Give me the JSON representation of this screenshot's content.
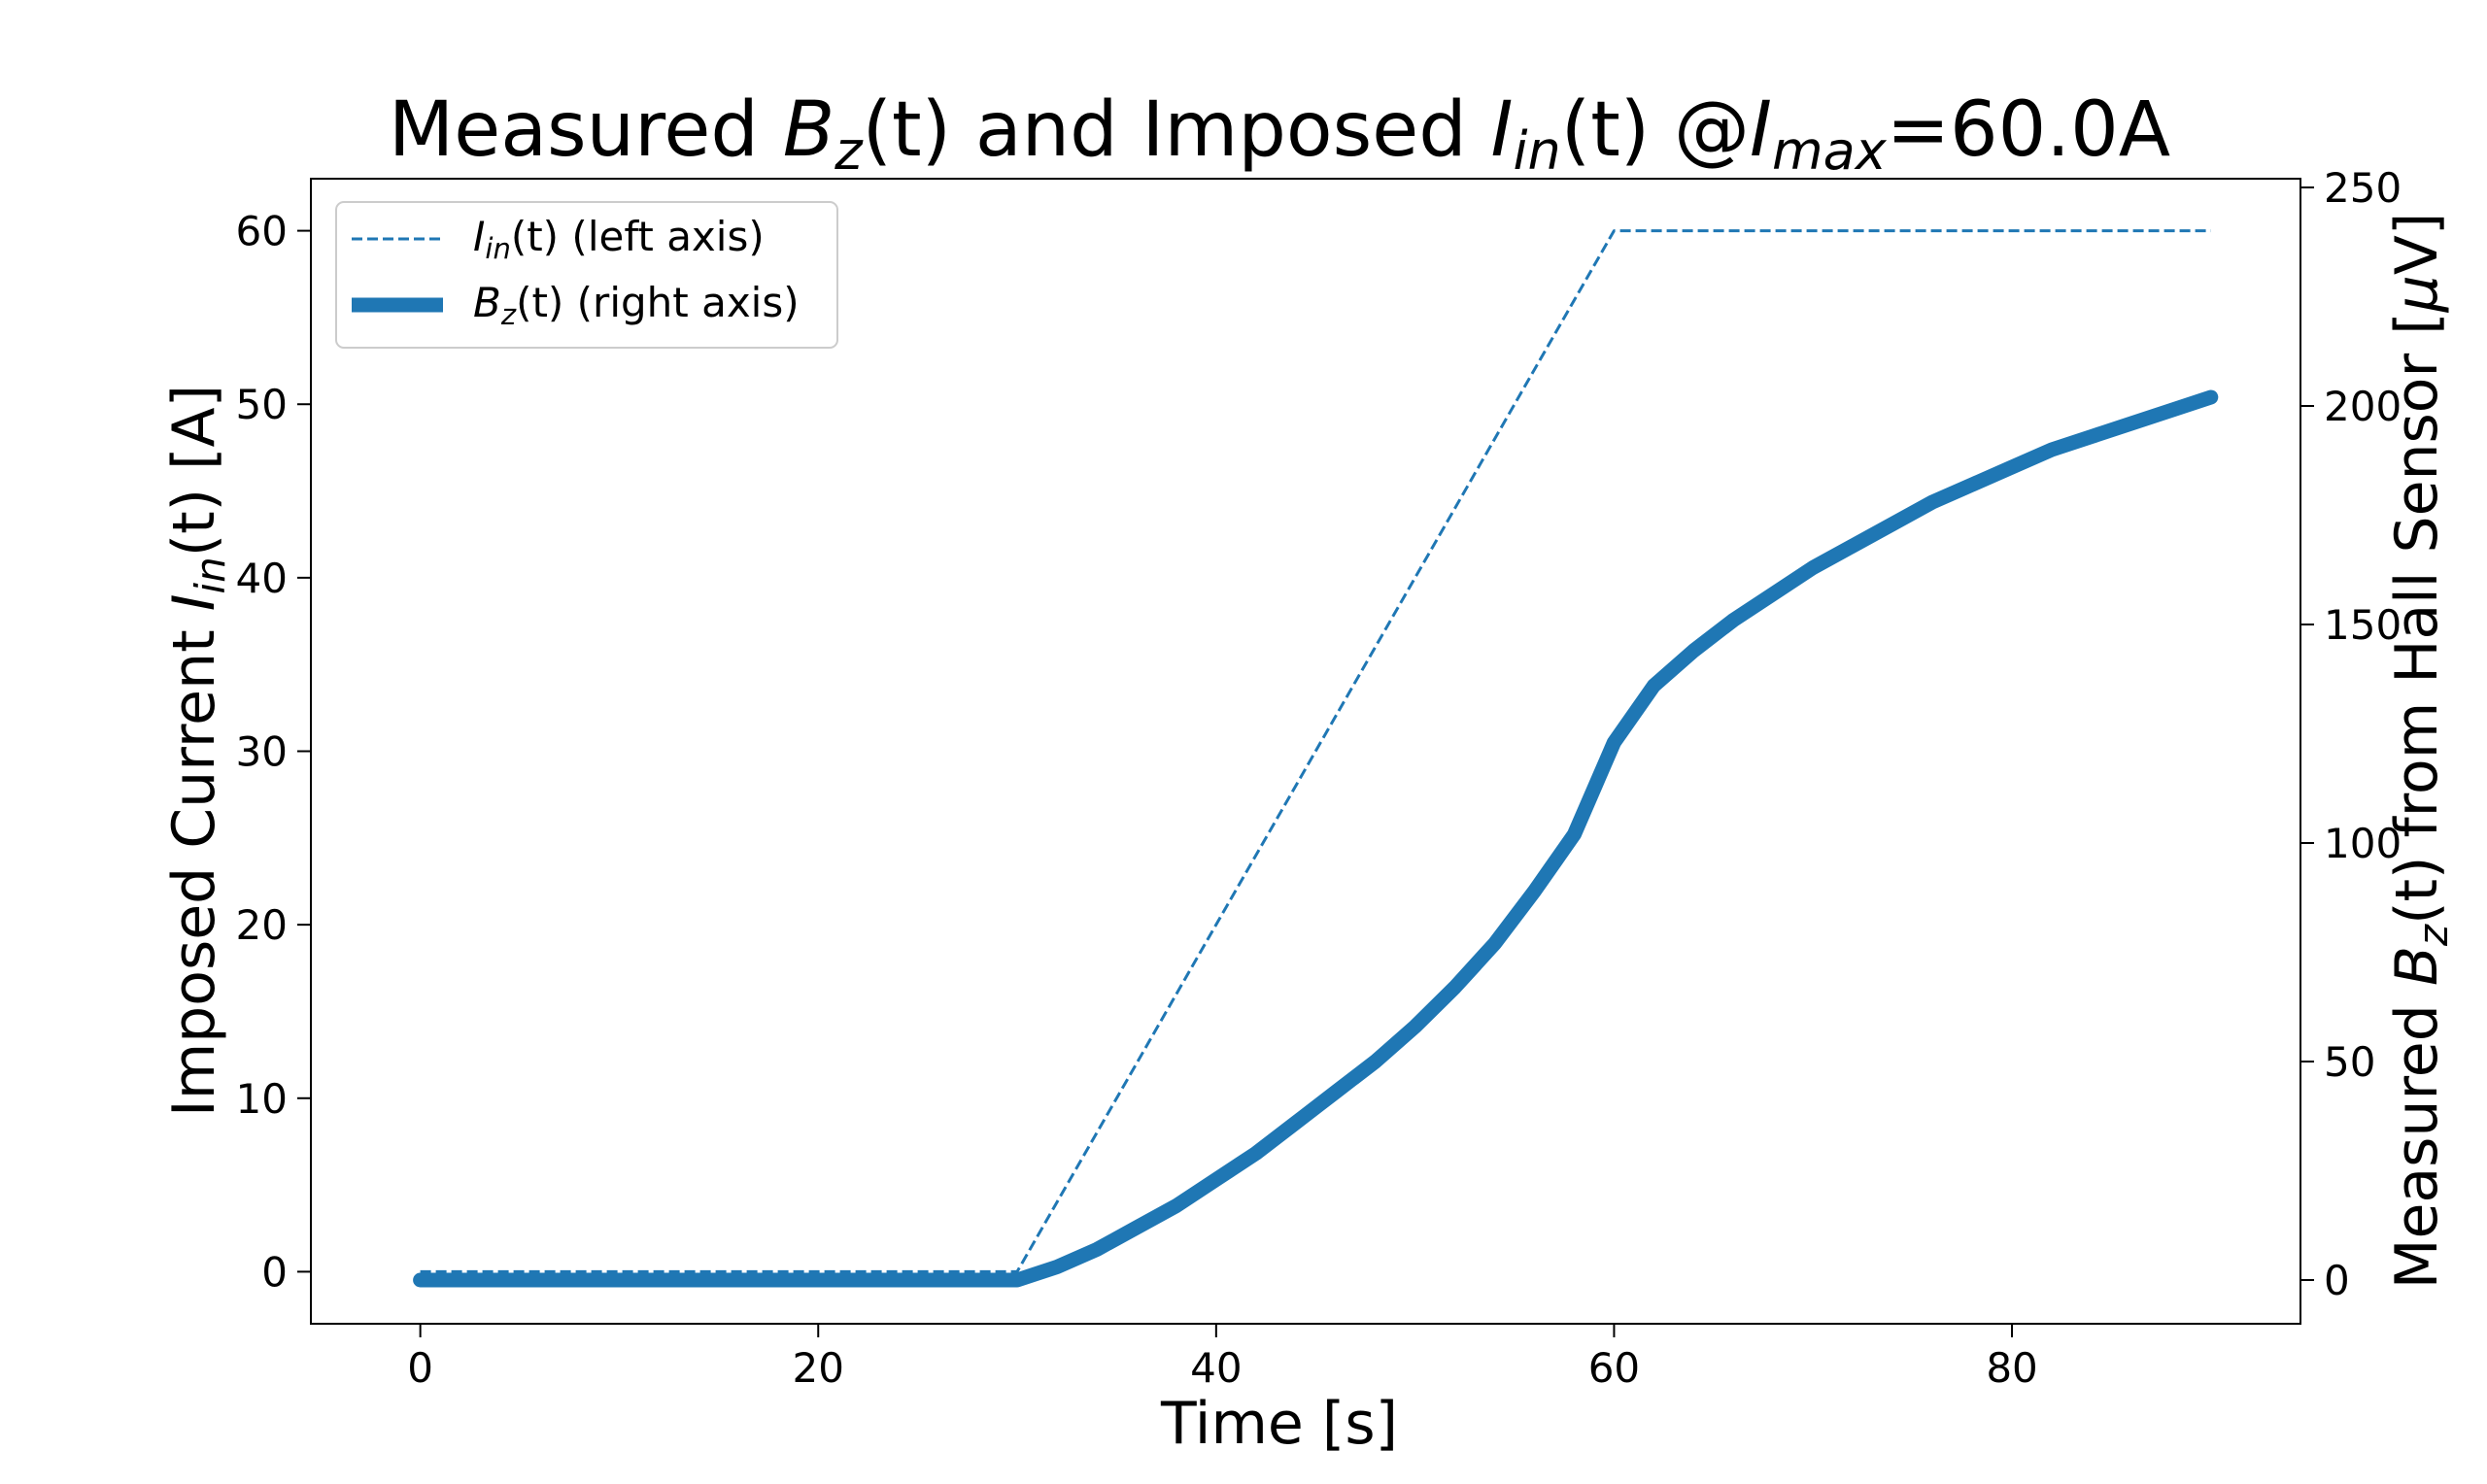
{
  "chart_data": {
    "type": "line",
    "title": {
      "prefix": "Measured ",
      "b_main": "B",
      "b_sub": "z",
      "b_arg": "(t)",
      "mid": " and Imposed ",
      "i_main": "I",
      "i_sub": "in",
      "i_arg": "(t)",
      "at": " @",
      "imax_main": "I",
      "imax_sub": "max",
      "suffix": "=60.0A"
    },
    "xlabel": "Time [s]",
    "ylabel_left": {
      "prefix": "Imposed Current ",
      "main": "I",
      "sub": "in",
      "arg": "(t)",
      "suffix": " [A]"
    },
    "ylabel_right": {
      "prefix": "Measured ",
      "main": "B",
      "sub": "z",
      "arg": "(t)",
      "suffix": " from Hall Sensor [",
      "mu": "μ",
      "unit": "V]"
    },
    "xlim": [
      -5.5,
      94.5
    ],
    "ylim_left": [
      -3,
      63
    ],
    "ylim_right": [
      -10,
      252
    ],
    "x_ticks": [
      0,
      20,
      40,
      60,
      80
    ],
    "y_left_ticks": [
      0,
      10,
      20,
      30,
      40,
      50,
      60
    ],
    "y_right_ticks": [
      0,
      50,
      100,
      150,
      200,
      250
    ],
    "grid": false,
    "legend_position": "top-left",
    "legend": [
      {
        "main": "I",
        "sub": "in",
        "arg": "(t)",
        "suffix": " (left axis)",
        "style": "dashed"
      },
      {
        "main": "B",
        "sub": "z",
        "arg": "(t)",
        "suffix": " (right axis)",
        "style": "thick"
      }
    ],
    "color": "#1f77b4",
    "series": [
      {
        "axis": "left",
        "x": [
          0,
          30,
          60,
          90
        ],
        "y": [
          0,
          0,
          60,
          60
        ]
      },
      {
        "axis": "right",
        "x": [
          0,
          5,
          10,
          15,
          20,
          25,
          28,
          30,
          32,
          34,
          36,
          38,
          40,
          42,
          44,
          46,
          48,
          50,
          52,
          54,
          56,
          58,
          60,
          62,
          64,
          66,
          68,
          70,
          72,
          74,
          76,
          78,
          80,
          82,
          84,
          86,
          88,
          90
        ],
        "y": [
          0,
          0,
          0,
          0,
          0,
          0,
          0,
          0,
          3,
          7,
          12,
          17,
          23,
          29,
          36,
          43,
          50,
          58,
          67,
          77,
          89,
          102,
          123,
          136,
          144,
          151,
          157,
          163,
          168,
          173,
          178,
          182,
          186,
          190,
          193,
          196,
          199,
          202
        ]
      }
    ]
  }
}
